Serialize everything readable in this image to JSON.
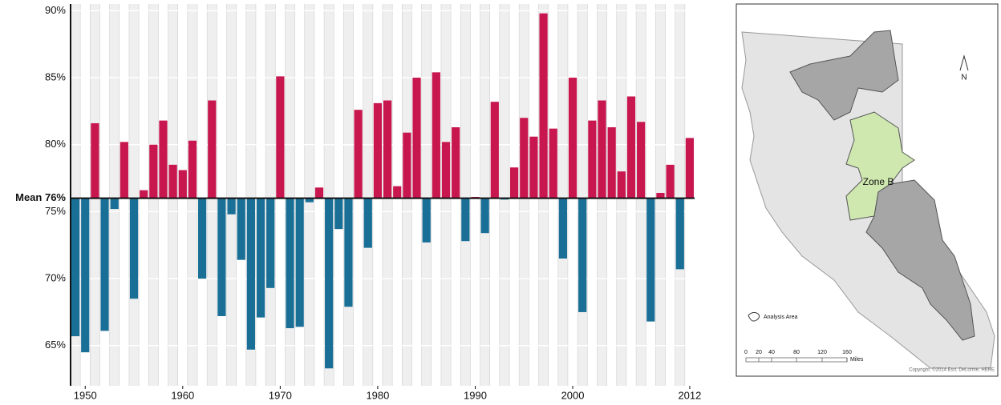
{
  "chart_data": {
    "type": "bar",
    "x": [
      1949,
      1950,
      1951,
      1952,
      1953,
      1954,
      1955,
      1956,
      1957,
      1958,
      1959,
      1960,
      1961,
      1962,
      1963,
      1964,
      1965,
      1966,
      1967,
      1968,
      1969,
      1970,
      1971,
      1972,
      1973,
      1974,
      1975,
      1976,
      1977,
      1978,
      1979,
      1980,
      1981,
      1982,
      1983,
      1984,
      1985,
      1986,
      1987,
      1988,
      1989,
      1990,
      1991,
      1992,
      1993,
      1994,
      1995,
      1996,
      1997,
      1998,
      1999,
      2000,
      2001,
      2002,
      2003,
      2004,
      2005,
      2006,
      2007,
      2008,
      2009,
      2010,
      2011,
      2012
    ],
    "values": [
      65.7,
      64.5,
      81.6,
      66.1,
      75.2,
      80.2,
      68.5,
      76.6,
      80.0,
      81.8,
      78.5,
      78.1,
      80.3,
      70.0,
      83.3,
      67.2,
      74.8,
      71.4,
      64.7,
      67.1,
      69.3,
      85.1,
      66.3,
      66.4,
      75.7,
      76.8,
      63.3,
      73.7,
      67.9,
      82.6,
      72.3,
      83.1,
      83.3,
      76.9,
      80.9,
      85.0,
      72.7,
      85.4,
      80.2,
      81.3,
      72.8,
      76.1,
      73.4,
      83.2,
      75.9,
      78.3,
      82.0,
      80.6,
      89.8,
      81.2,
      71.5,
      85.0,
      67.5,
      81.8,
      83.3,
      81.3,
      78.0,
      83.6,
      81.7,
      66.8,
      76.4,
      78.5,
      70.7,
      80.5
    ],
    "mean": 76,
    "mean_label": "Mean 76%",
    "colors": {
      "above": "#c8174f",
      "below": "#1a6f96"
    },
    "xlim": [
      1948.5,
      2012.5
    ],
    "xticks": [
      1950,
      1960,
      1970,
      1980,
      1990,
      2000,
      2012
    ],
    "ylim": [
      62,
      90.5
    ],
    "yticks": [
      {
        "value": 65,
        "label": "65%"
      },
      {
        "value": 70,
        "label": "70%"
      },
      {
        "value": 75,
        "label": "75%"
      },
      {
        "value": 80,
        "label": "80%"
      },
      {
        "value": 85,
        "label": "85%"
      },
      {
        "value": 90,
        "label": "90%"
      }
    ],
    "grid": true
  },
  "map": {
    "zone_label": "Zone B",
    "legend_label": "Analysis Area",
    "north": "N",
    "scale_labels": [
      "0",
      "20",
      "40",
      "80",
      "120",
      "160"
    ],
    "scale_unit": "Miles",
    "credit": "Copyright: ©2014 Esri, DeLorme, HERE"
  }
}
